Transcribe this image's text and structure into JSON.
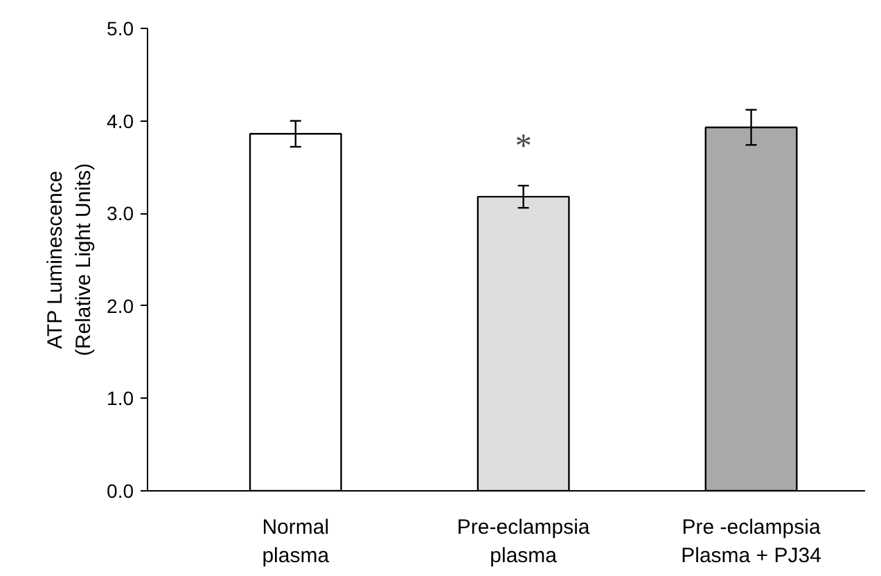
{
  "chart_data": {
    "type": "bar",
    "ylabel": "ATP Luminescence\n(Relative Light Units)",
    "categories": [
      "Normal\nplasma",
      "Pre-eclampsia\nplasma",
      "Pre -eclampsia\nPlasma + PJ34"
    ],
    "values": [
      3.86,
      3.18,
      3.93
    ],
    "errors": [
      0.14,
      0.12,
      0.19
    ],
    "colors": [
      "#ffffff",
      "#dedede",
      "#a9a9a9"
    ],
    "ylim": [
      0,
      5
    ],
    "yticks": [
      {
        "value": 0,
        "label": "0.0"
      },
      {
        "value": 1,
        "label": "1.0"
      },
      {
        "value": 2,
        "label": "2.0"
      },
      {
        "value": 3,
        "label": "3.0"
      },
      {
        "value": 4,
        "label": "4.0"
      },
      {
        "value": 5,
        "label": "5.0"
      }
    ],
    "annotations": [
      {
        "text": "*",
        "x": "Pre-eclampsia\nplasma",
        "y": 3.18
      }
    ],
    "grid": false
  }
}
